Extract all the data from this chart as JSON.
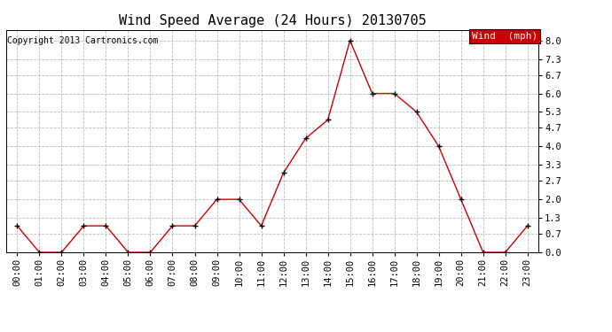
{
  "title": "Wind Speed Average (24 Hours) 20130705",
  "copyright": "Copyright 2013 Cartronics.com",
  "legend_label": "Wind  (mph)",
  "legend_bg": "#cc0000",
  "legend_text_color": "#ffffff",
  "x_labels": [
    "00:00",
    "01:00",
    "02:00",
    "03:00",
    "04:00",
    "05:00",
    "06:00",
    "07:00",
    "08:00",
    "09:00",
    "10:00",
    "11:00",
    "12:00",
    "13:00",
    "14:00",
    "15:00",
    "16:00",
    "17:00",
    "18:00",
    "19:00",
    "20:00",
    "21:00",
    "22:00",
    "23:00"
  ],
  "y_values": [
    1.0,
    0.0,
    0.0,
    1.0,
    1.0,
    0.0,
    0.0,
    1.0,
    1.0,
    2.0,
    2.0,
    1.0,
    3.0,
    4.3,
    5.0,
    8.0,
    6.0,
    6.0,
    5.3,
    4.0,
    2.0,
    0.0,
    0.0,
    1.0
  ],
  "y_ticks": [
    0.0,
    0.7,
    1.3,
    2.0,
    2.7,
    3.3,
    4.0,
    4.7,
    5.3,
    6.0,
    6.7,
    7.3,
    8.0
  ],
  "y_tick_labels": [
    "0.0",
    "0.7",
    "1.3",
    "2.0",
    "2.7",
    "3.3",
    "4.0",
    "4.7",
    "5.3",
    "6.0",
    "6.7",
    "7.3",
    "8.0"
  ],
  "ylim": [
    0.0,
    8.4
  ],
  "line_color": "#cc0000",
  "marker_color": "#000000",
  "grid_color": "#bbbbbb",
  "bg_color": "#ffffff",
  "plot_bg_color": "#ffffff",
  "title_fontsize": 11,
  "copyright_fontsize": 7,
  "tick_fontsize": 7.5,
  "legend_fontsize": 8
}
